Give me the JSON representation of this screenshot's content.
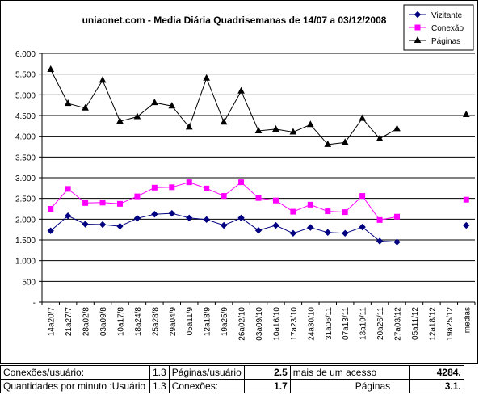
{
  "chart_data": {
    "type": "line",
    "title": "uniaonet.com - Media Diária Quadrisemanas de 14/07 a 03/12/2008",
    "categories": [
      "14a20/7",
      "21a27/7",
      "28a02/8",
      "03a09/8",
      "10a17/8",
      "18a24/8",
      "25a28/8",
      "29a04/9",
      "05a11/9",
      "12a18/9",
      "19a25/9",
      "26a02/10",
      "03a09/10",
      "10a16/10",
      "17a23/10",
      "24a30/10",
      "31a06/11",
      "07a13/11",
      "13a19/11",
      "20a26/11",
      "27a03/12",
      "05a11/12",
      "12a18/12",
      "19a25/12",
      "medias"
    ],
    "y_ticks": [
      "-",
      "500",
      "1.000",
      "1.500",
      "2.000",
      "2.500",
      "3.000",
      "3.500",
      "4.000",
      "4.500",
      "5.000",
      "5.500",
      "6.000"
    ],
    "ylim": [
      0,
      6000
    ],
    "legend_position": "top-right",
    "series": [
      {
        "name": "Vizitante",
        "color": "#000080",
        "marker": "diamond",
        "values": [
          1720,
          2080,
          1880,
          1870,
          1830,
          2020,
          2120,
          2140,
          2030,
          1990,
          1850,
          2030,
          1730,
          1850,
          1660,
          1800,
          1680,
          1660,
          1810,
          1470,
          1450,
          null,
          null,
          null,
          1850
        ]
      },
      {
        "name": "Conexão",
        "color": "#ff00ff",
        "marker": "square",
        "values": [
          2250,
          2730,
          2390,
          2400,
          2370,
          2550,
          2760,
          2770,
          2890,
          2740,
          2560,
          2890,
          2510,
          2450,
          2180,
          2350,
          2190,
          2170,
          2560,
          1980,
          2060,
          null,
          null,
          null,
          2470
        ]
      },
      {
        "name": "Páginas",
        "color": "#000000",
        "marker": "triangle",
        "values": [
          5610,
          4790,
          4680,
          5350,
          4360,
          4470,
          4810,
          4730,
          4220,
          5400,
          4340,
          5090,
          4130,
          4170,
          4100,
          4280,
          3800,
          3850,
          4430,
          3940,
          4180,
          null,
          null,
          null,
          4520
        ]
      }
    ]
  },
  "stats": {
    "row1": {
      "label1": "Conexões/usuário:",
      "value1": "1.3",
      "label2": "Páginas/usuário",
      "value2": "2.5",
      "label3": "mais de um acesso",
      "value3": "4284."
    },
    "row2": {
      "label1": "Quantidades por minuto :Usuário",
      "value1": "1.3",
      "label2": "Conexões:",
      "value2": "1.7",
      "label3": "Páginas",
      "value3": "3.1."
    }
  }
}
